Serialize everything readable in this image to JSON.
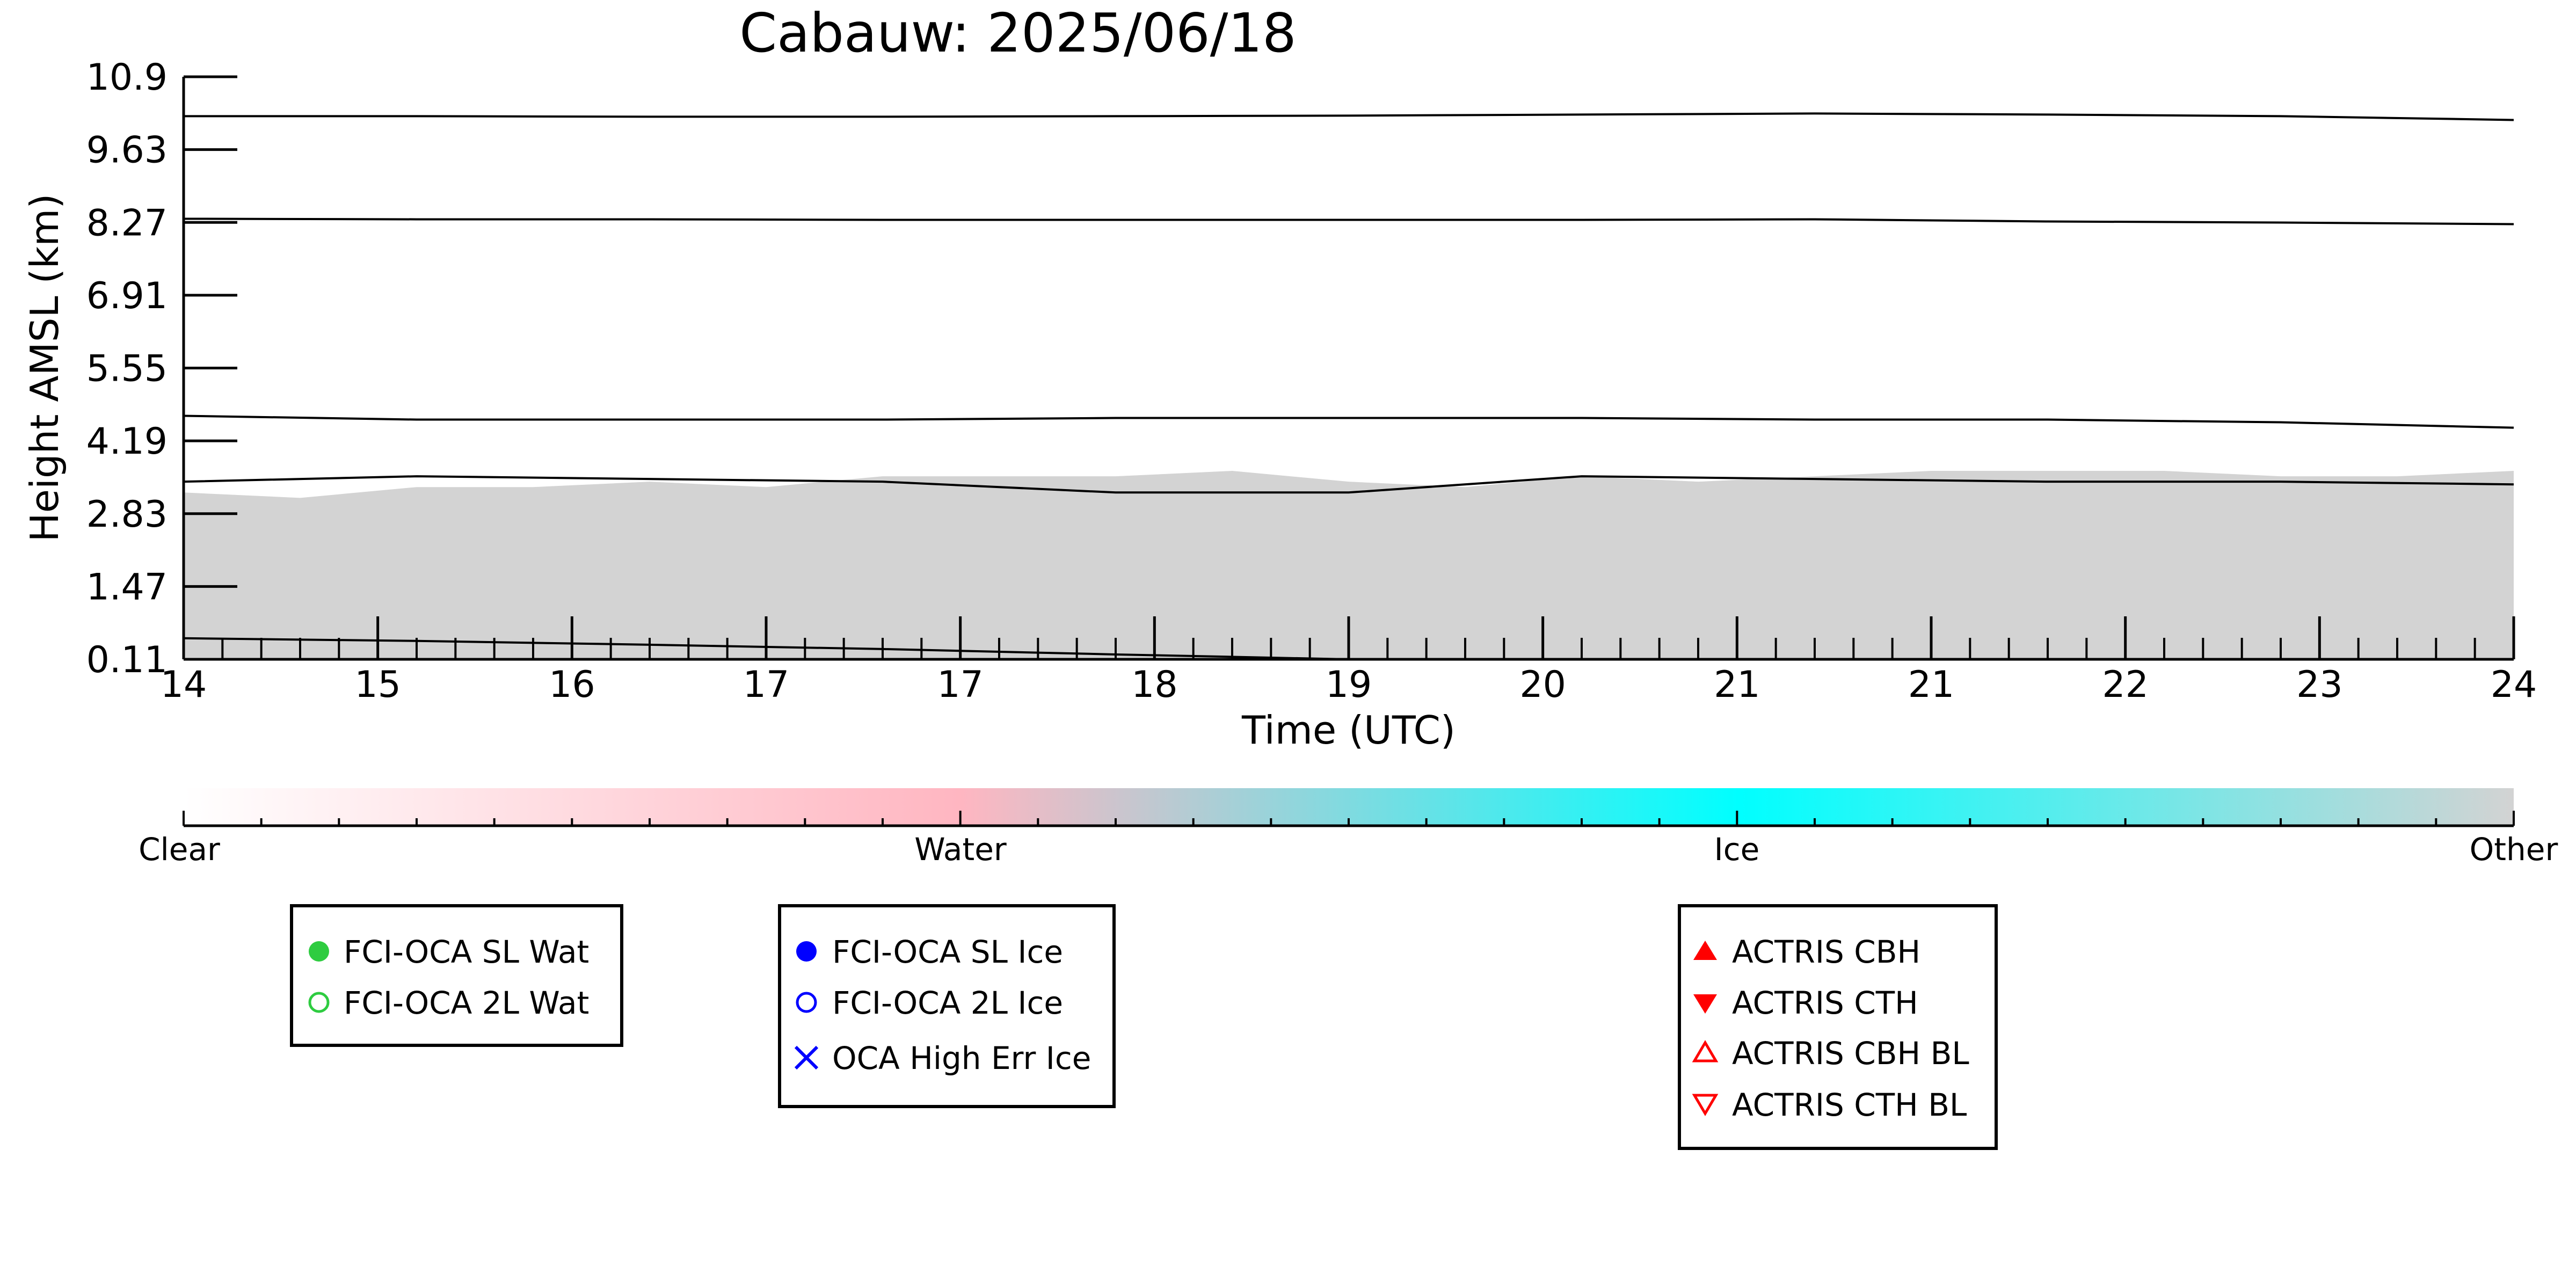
{
  "chart_data": {
    "type": "area",
    "title": "Cabauw: 2025/06/18",
    "xlabel": "Time (UTC)",
    "ylabel": "Height AMSL (km)",
    "xlim": [
      14,
      24
    ],
    "ylim": [
      0.11,
      10.9
    ],
    "x_tick_labels": [
      "14",
      "15",
      "16",
      "17",
      "17",
      "18",
      "19",
      "20",
      "21",
      "21",
      "22",
      "23",
      "24"
    ],
    "y_tick_labels": [
      "0.11",
      "1.47",
      "2.83",
      "4.19",
      "5.55",
      "6.91",
      "8.27",
      "9.63",
      "10.9"
    ],
    "cloud_mask": {
      "category": "Other",
      "color": "#d3d3d3",
      "description_points": {
        "x": [
          14.0,
          14.5,
          15.0,
          15.5,
          16.0,
          16.5,
          17.0,
          17.5,
          18.0,
          18.5,
          19.0,
          19.5,
          20.0,
          20.5,
          21.0,
          21.5,
          22.0,
          22.5,
          23.0,
          23.5,
          24.0
        ],
        "top_km": [
          3.2,
          3.1,
          3.3,
          3.3,
          3.4,
          3.3,
          3.5,
          3.5,
          3.5,
          3.6,
          3.4,
          3.3,
          3.5,
          3.4,
          3.5,
          3.6,
          3.6,
          3.6,
          3.5,
          3.5,
          3.6
        ]
      }
    },
    "series": [
      {
        "color": "#000000",
        "x": [
          14.0,
          15.0,
          16.0,
          17.0,
          18.0,
          19.0,
          20.0,
          21.0,
          22.0,
          23.0,
          24.0
        ],
        "y": [
          0.5,
          0.45,
          0.38,
          0.3,
          0.2,
          0.11,
          null,
          null,
          null,
          null,
          null
        ]
      },
      {
        "color": "#000000",
        "x": [
          14.0,
          15.0,
          16.0,
          17.0,
          18.0,
          19.0,
          20.0,
          21.0,
          22.0,
          23.0,
          24.0
        ],
        "y": [
          3.4,
          3.5,
          3.45,
          3.4,
          3.2,
          3.2,
          3.5,
          3.45,
          3.4,
          3.4,
          3.35
        ]
      },
      {
        "color": "#000000",
        "x": [
          14.0,
          15.0,
          16.0,
          17.0,
          18.0,
          19.0,
          20.0,
          21.0,
          22.0,
          23.0,
          24.0
        ],
        "y": [
          4.62,
          4.55,
          4.55,
          4.55,
          4.58,
          4.58,
          4.58,
          4.55,
          4.55,
          4.5,
          4.4
        ]
      },
      {
        "color": "#000000",
        "x": [
          14.0,
          15.0,
          16.0,
          17.0,
          18.0,
          19.0,
          20.0,
          21.0,
          22.0,
          23.0,
          24.0
        ],
        "y": [
          8.27,
          8.26,
          8.26,
          8.25,
          8.25,
          8.25,
          8.25,
          8.26,
          8.22,
          8.2,
          8.17
        ]
      },
      {
        "color": "#000000",
        "x": [
          14.0,
          15.0,
          16.0,
          17.0,
          18.0,
          19.0,
          20.0,
          21.0,
          22.0,
          23.0,
          24.0
        ],
        "y": [
          10.17,
          10.17,
          10.16,
          10.16,
          10.17,
          10.18,
          10.2,
          10.22,
          10.2,
          10.17,
          10.1
        ]
      }
    ],
    "colorbar": {
      "labels": [
        "Clear",
        "Water",
        "Ice",
        "Other"
      ],
      "colors": [
        "#ffffff",
        "#ffb6c1",
        "#00ffff",
        "#d3d3d3"
      ]
    },
    "legends": [
      {
        "items": [
          {
            "label": "FCI-OCA SL Wat",
            "marker": "filled-circle",
            "color": "#2ecc40"
          },
          {
            "label": "FCI-OCA 2L Wat",
            "marker": "open-circle",
            "color": "#2ecc40"
          }
        ]
      },
      {
        "items": [
          {
            "label": "FCI-OCA SL Ice",
            "marker": "filled-circle",
            "color": "#0000ff"
          },
          {
            "label": "FCI-OCA 2L Ice",
            "marker": "open-circle",
            "color": "#0000ff"
          },
          {
            "label": "OCA High Err Ice",
            "marker": "x",
            "color": "#0000ff"
          }
        ]
      },
      {
        "items": [
          {
            "label": "ACTRIS CBH",
            "marker": "filled-triangle-up",
            "color": "#ff0000"
          },
          {
            "label": "ACTRIS CTH",
            "marker": "filled-triangle-down",
            "color": "#ff0000"
          },
          {
            "label": "ACTRIS CBH BL",
            "marker": "open-triangle-up",
            "color": "#ff0000"
          },
          {
            "label": "ACTRIS CTH BL",
            "marker": "open-triangle-down",
            "color": "#ff0000"
          }
        ]
      }
    ]
  }
}
